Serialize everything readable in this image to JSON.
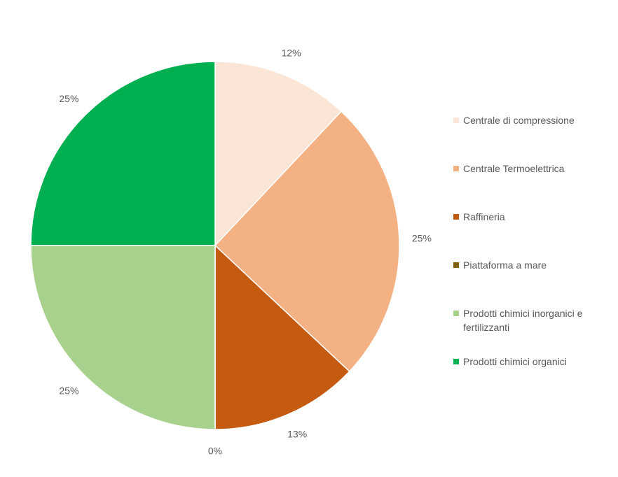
{
  "chart_data": {
    "type": "pie",
    "categories": [
      "Centrale di compressione",
      "Centrale Termoelettrica",
      "Raffineria",
      "Piattaforma a mare",
      "Prodotti chimici inorganici e fertilizzanti",
      "Prodotti chimici organici"
    ],
    "values": [
      12,
      25,
      13,
      0,
      25,
      25
    ],
    "value_labels": [
      "12%",
      "25%",
      "13%",
      "0%",
      "25%",
      "25%"
    ],
    "colors": [
      "#fbe5d6",
      "#f4b183",
      "#c55a11",
      "#7f6000",
      "#a9d18e",
      "#00b050"
    ],
    "legend": "right"
  }
}
